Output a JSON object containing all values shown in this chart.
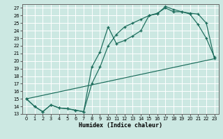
{
  "xlabel": "Humidex (Indice chaleur)",
  "background_color": "#cce8e2",
  "grid_color": "#b8d8d0",
  "line_color": "#1a6b5a",
  "xlim": [
    -0.5,
    23.5
  ],
  "ylim": [
    13,
    27.5
  ],
  "xticks": [
    0,
    1,
    2,
    3,
    4,
    5,
    6,
    7,
    8,
    9,
    10,
    11,
    12,
    13,
    14,
    15,
    16,
    17,
    18,
    19,
    20,
    21,
    22,
    23
  ],
  "yticks": [
    13,
    14,
    15,
    16,
    17,
    18,
    19,
    20,
    21,
    22,
    23,
    24,
    25,
    26,
    27
  ],
  "line1_x": [
    0,
    1,
    2,
    3,
    4,
    5,
    6,
    7,
    8,
    9,
    10,
    11,
    12,
    13,
    14,
    15,
    16,
    17,
    18,
    19,
    20,
    21,
    22,
    23
  ],
  "line1_y": [
    15.0,
    14.0,
    13.3,
    14.2,
    13.8,
    13.7,
    13.5,
    13.3,
    19.2,
    21.2,
    24.5,
    22.3,
    22.7,
    23.3,
    24.0,
    26.0,
    26.2,
    27.2,
    26.8,
    26.5,
    26.3,
    26.2,
    25.0,
    20.3
  ],
  "line2_x": [
    0,
    1,
    2,
    3,
    4,
    5,
    6,
    7,
    8,
    9,
    10,
    11,
    12,
    13,
    14,
    15,
    16,
    17,
    18,
    19,
    20,
    21,
    22,
    23
  ],
  "line2_y": [
    15.0,
    14.0,
    13.3,
    14.2,
    13.8,
    13.7,
    13.5,
    13.3,
    17.0,
    19.2,
    22.0,
    23.5,
    24.5,
    25.0,
    25.5,
    26.0,
    26.3,
    27.0,
    26.5,
    26.5,
    26.2,
    24.8,
    23.0,
    20.5
  ],
  "line3_x": [
    0,
    23
  ],
  "line3_y": [
    15.0,
    20.3
  ]
}
